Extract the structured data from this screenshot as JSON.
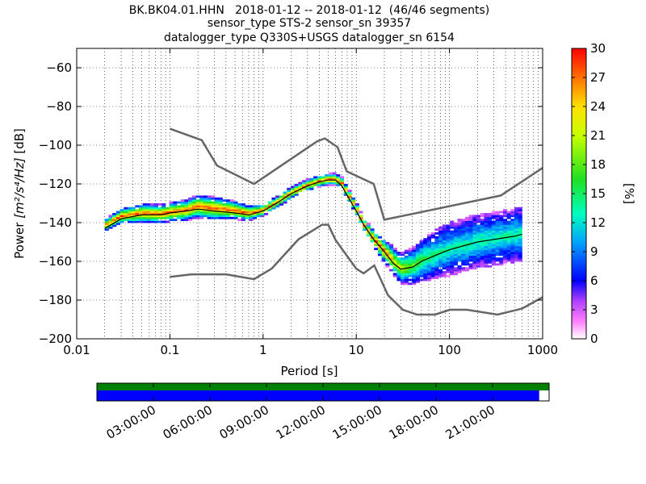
{
  "chart_data": {
    "type": "heatmap",
    "title_lines": [
      "BK.BK04.01.HHN   2018-01-12 -- 2018-01-12  (46/46 segments)",
      "sensor_type STS-2 sensor_sn 39357",
      "datalogger_type Q330S+USGS datalogger_sn 6154"
    ],
    "xlabel": "Period [s]",
    "ylabel_prefix": "Power ",
    "ylabel_units": "[m²/s⁴/Hz]",
    "ylabel_suffix": " [dB]",
    "x_scale": "log",
    "xlim": [
      0.01,
      1000
    ],
    "ylim": [
      -200,
      -50
    ],
    "x_ticks": [
      {
        "value": 0.01,
        "label": "0.01"
      },
      {
        "value": 0.1,
        "label": "0.1"
      },
      {
        "value": 1,
        "label": "1"
      },
      {
        "value": 10,
        "label": "10"
      },
      {
        "value": 100,
        "label": "100"
      },
      {
        "value": 1000,
        "label": "1000"
      }
    ],
    "y_ticks": [
      {
        "value": -60,
        "label": "−60"
      },
      {
        "value": -80,
        "label": "−80"
      },
      {
        "value": -100,
        "label": "−100"
      },
      {
        "value": -120,
        "label": "−120"
      },
      {
        "value": -140,
        "label": "−140"
      },
      {
        "value": -160,
        "label": "−160"
      },
      {
        "value": -180,
        "label": "−180"
      },
      {
        "value": -200,
        "label": "−200"
      }
    ],
    "grid": "dotted",
    "noise_model_high": [
      [
        0.1,
        -91.5
      ],
      [
        0.22,
        -97.4
      ],
      [
        0.32,
        -110.5
      ],
      [
        0.8,
        -120
      ],
      [
        3.8,
        -98
      ],
      [
        4.6,
        -96.5
      ],
      [
        6.3,
        -101
      ],
      [
        7.9,
        -113.5
      ],
      [
        15.4,
        -120
      ],
      [
        20,
        -138.5
      ],
      [
        354.8,
        -126
      ],
      [
        10000,
        -80
      ]
    ],
    "noise_model_low": [
      [
        0.1,
        -168
      ],
      [
        0.17,
        -166.7
      ],
      [
        0.4,
        -166.7
      ],
      [
        0.8,
        -169.2
      ],
      [
        1.24,
        -163.7
      ],
      [
        2.4,
        -148.6
      ],
      [
        4.3,
        -141.1
      ],
      [
        5,
        -141.1
      ],
      [
        6,
        -149
      ],
      [
        10,
        -163.8
      ],
      [
        12,
        -166.2
      ],
      [
        15.6,
        -162.1
      ],
      [
        21.9,
        -177.5
      ],
      [
        31.6,
        -185
      ],
      [
        45,
        -187.5
      ],
      [
        70,
        -187.5
      ],
      [
        101,
        -185
      ],
      [
        154,
        -185
      ],
      [
        328,
        -187.5
      ],
      [
        600,
        -184.4
      ],
      [
        10000,
        -151.9
      ]
    ],
    "mean_curve": [
      [
        0.02,
        -143
      ],
      [
        0.03,
        -138
      ],
      [
        0.05,
        -136
      ],
      [
        0.08,
        -136
      ],
      [
        0.1,
        -135
      ],
      [
        0.15,
        -134
      ],
      [
        0.2,
        -133
      ],
      [
        0.3,
        -134
      ],
      [
        0.5,
        -135
      ],
      [
        0.7,
        -136
      ],
      [
        1,
        -134
      ],
      [
        1.5,
        -129
      ],
      [
        2,
        -125
      ],
      [
        3,
        -121
      ],
      [
        4,
        -119
      ],
      [
        5,
        -118
      ],
      [
        6,
        -118
      ],
      [
        7,
        -121
      ],
      [
        8,
        -126
      ],
      [
        10,
        -134
      ],
      [
        12,
        -141
      ],
      [
        15,
        -148
      ],
      [
        20,
        -155
      ],
      [
        25,
        -161
      ],
      [
        30,
        -164
      ],
      [
        40,
        -163
      ],
      [
        50,
        -160
      ],
      [
        70,
        -157
      ],
      [
        100,
        -154
      ],
      [
        200,
        -150
      ],
      [
        500,
        -147
      ],
      [
        600,
        -146
      ]
    ],
    "psd_ridge": [
      [
        0.02,
        -142
      ],
      [
        0.03,
        -137
      ],
      [
        0.05,
        -135.5
      ],
      [
        0.08,
        -136
      ],
      [
        0.1,
        -135
      ],
      [
        0.15,
        -134
      ],
      [
        0.2,
        -132
      ],
      [
        0.3,
        -133
      ],
      [
        0.5,
        -134
      ],
      [
        0.7,
        -135.5
      ],
      [
        1,
        -134
      ],
      [
        1.5,
        -129
      ],
      [
        2,
        -125
      ],
      [
        3,
        -121
      ],
      [
        4,
        -119
      ],
      [
        5,
        -118
      ],
      [
        6,
        -118
      ],
      [
        7,
        -120
      ],
      [
        8,
        -125
      ],
      [
        10,
        -133
      ],
      [
        12,
        -141
      ],
      [
        15,
        -148
      ],
      [
        20,
        -155
      ],
      [
        25,
        -160
      ],
      [
        30,
        -164
      ],
      [
        40,
        -163
      ],
      [
        50,
        -160
      ],
      [
        70,
        -157
      ],
      [
        100,
        -154
      ],
      [
        200,
        -150
      ],
      [
        500,
        -147
      ],
      [
        600,
        -146
      ]
    ],
    "psd_spread": [
      [
        0.02,
        3
      ],
      [
        0.05,
        5
      ],
      [
        0.1,
        5
      ],
      [
        0.2,
        6
      ],
      [
        0.3,
        6
      ],
      [
        0.7,
        4
      ],
      [
        1,
        3
      ],
      [
        2,
        3
      ],
      [
        5,
        3
      ],
      [
        8,
        3
      ],
      [
        12,
        3
      ],
      [
        20,
        6
      ],
      [
        30,
        8
      ],
      [
        60,
        12
      ],
      [
        100,
        14
      ],
      [
        300,
        14
      ],
      [
        600,
        14
      ]
    ],
    "colorbar": {
      "label": "[%]",
      "range": [
        0,
        30
      ],
      "ticks": [
        "0",
        "3",
        "6",
        "9",
        "12",
        "15",
        "18",
        "21",
        "24",
        "27",
        "30"
      ]
    },
    "coverage": {
      "time_ticks": [
        "03:00:00",
        "06:00:00",
        "09:00:00",
        "12:00:00",
        "15:00:00",
        "18:00:00",
        "21:00:00"
      ],
      "top_bar_color": "#008000",
      "bottom_bar_color": "#0000ff",
      "data_fraction": 0.978
    }
  }
}
